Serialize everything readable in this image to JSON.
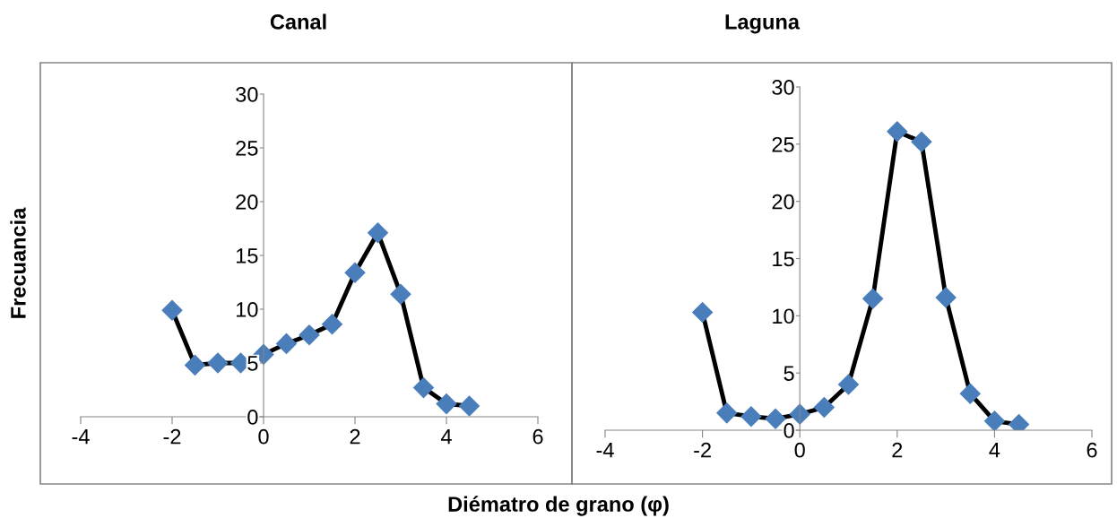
{
  "chart_data": [
    {
      "type": "line",
      "title": "Canal",
      "ylabel": "Frecuancia",
      "xlabel": "Diématro de grano (φ)",
      "x": [
        -2,
        -1.5,
        -1,
        -0.5,
        0,
        0.5,
        1,
        1.5,
        2,
        2.5,
        3,
        3.5,
        4,
        4.5
      ],
      "series": [
        {
          "color": "#4a7ebb",
          "values": [
            9.9,
            4.8,
            5.0,
            5.0,
            5.8,
            6.8,
            7.6,
            8.6,
            13.4,
            17.1,
            11.4,
            2.7,
            1.2,
            1.0
          ]
        }
      ],
      "xlim": [
        -4,
        6
      ],
      "xticks": [
        -4,
        -2,
        0,
        2,
        4,
        6
      ],
      "ylim": [
        0,
        30
      ],
      "yticks": [
        0,
        5,
        10,
        15,
        20,
        25,
        30
      ],
      "marker": "diamond",
      "line_style": "solid",
      "grid": false,
      "legend": false
    },
    {
      "type": "line",
      "title": "Laguna",
      "x": [
        -2,
        -1.5,
        -1,
        -0.5,
        0,
        0.5,
        1,
        1.5,
        2,
        2.5,
        3,
        3.5,
        4,
        4.5
      ],
      "series": [
        {
          "color": "#4a7ebb",
          "values": [
            10.3,
            1.5,
            1.2,
            1.0,
            1.4,
            2.0,
            4.0,
            11.5,
            26.1,
            25.2,
            11.6,
            3.2,
            0.8,
            0.5
          ]
        }
      ],
      "xlim": [
        -4,
        6
      ],
      "xticks": [
        -4,
        -2,
        0,
        2,
        4,
        6
      ],
      "ylim": [
        0,
        30
      ],
      "yticks": [
        0,
        5,
        10,
        15,
        20,
        25,
        30
      ],
      "marker": "diamond",
      "line_style": "solid",
      "grid": false,
      "legend": false
    }
  ]
}
